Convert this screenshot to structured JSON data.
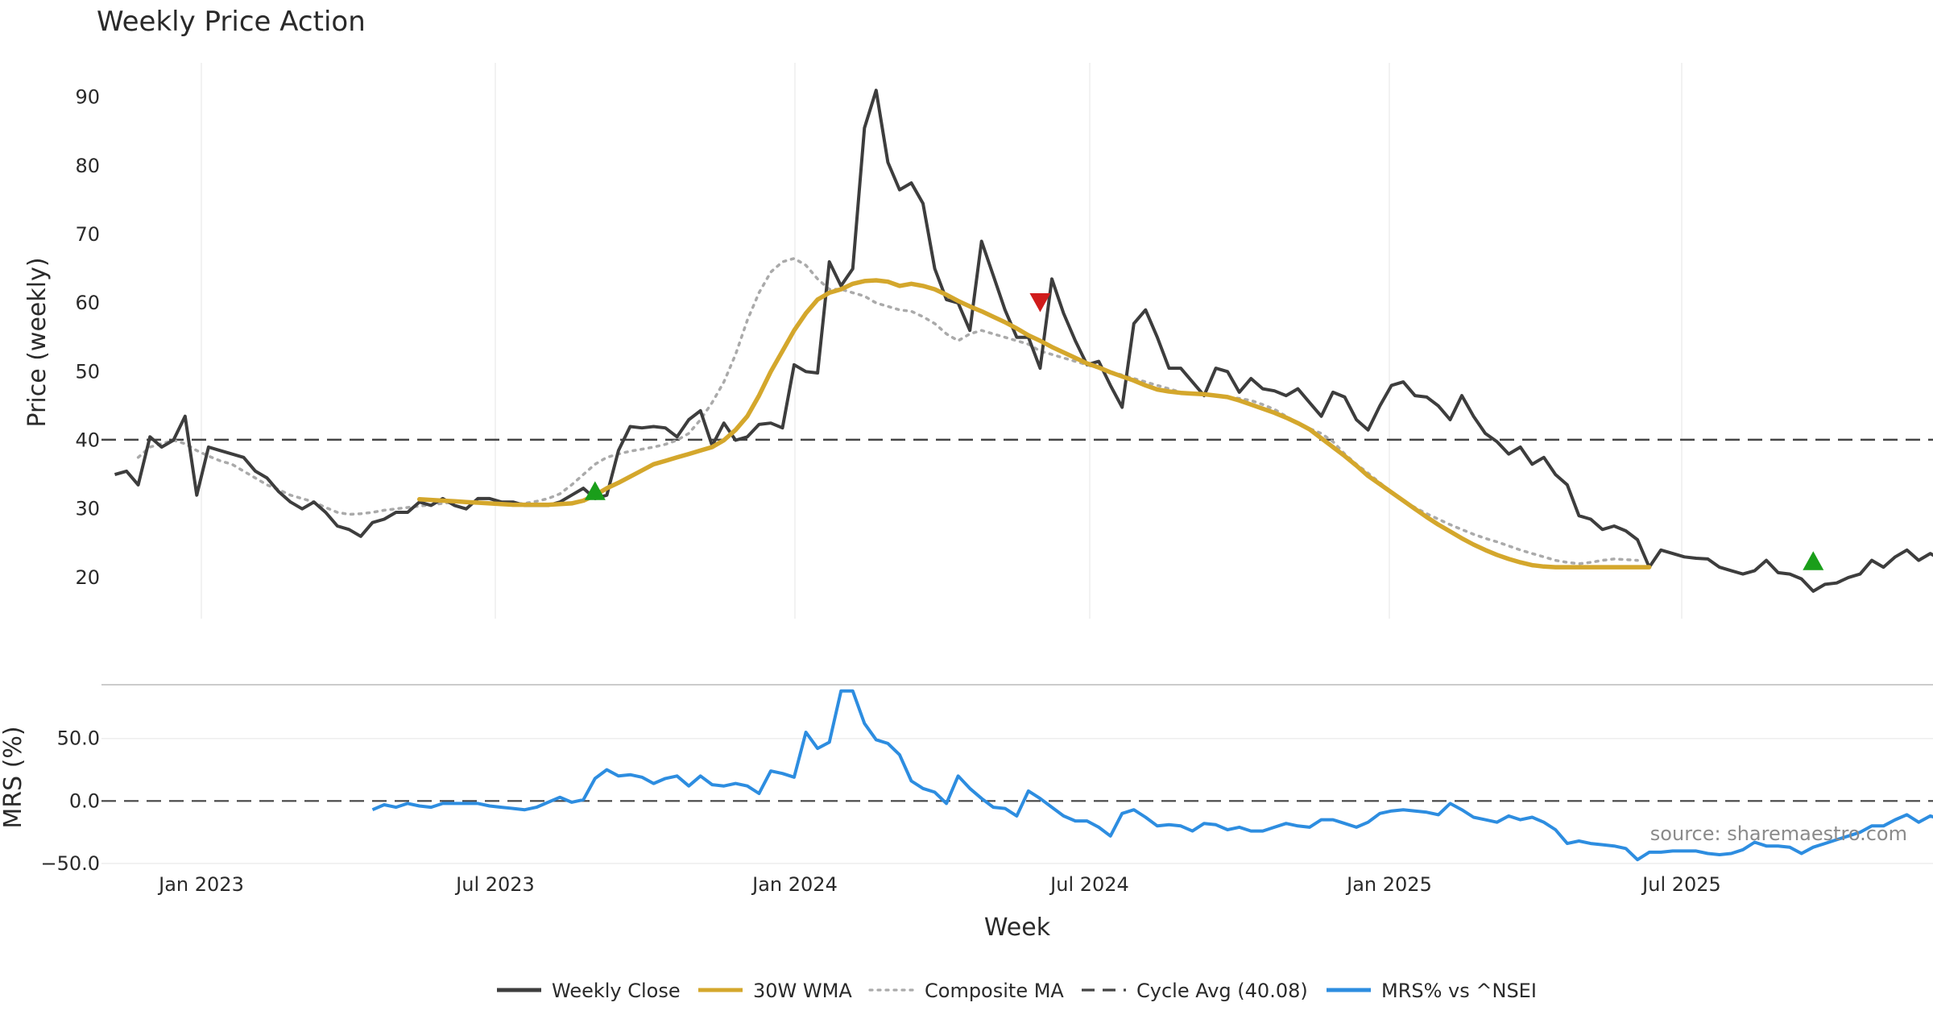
{
  "chart_data": {
    "type": "line",
    "title": "Weekly Price Action",
    "xlabel": "Week",
    "source": "source: sharemaestro.com",
    "x_ticks": [
      "Jan 2023",
      "Jul 2023",
      "Jan 2024",
      "Jul 2024",
      "Jan 2025",
      "Jul 2025"
    ],
    "colors": {
      "weekly_close": "#3d3d3d",
      "wma": "#d4a72c",
      "composite": "#aaaaaa",
      "cycle_avg": "#444444",
      "mrs": "#2d8de0",
      "buy": "#1a9e1a",
      "sell": "#d01c1c",
      "grid": "#eeeeee"
    },
    "legend": [
      {
        "label": "Weekly Close",
        "style": "solid",
        "color": "#3d3d3d"
      },
      {
        "label": "30W WMA",
        "style": "solid",
        "color": "#d4a72c"
      },
      {
        "label": "Composite MA",
        "style": "dotted",
        "color": "#aaaaaa"
      },
      {
        "label": "Cycle Avg (40.08)",
        "style": "dashed",
        "color": "#444444"
      },
      {
        "label": "MRS% vs ^NSEI",
        "style": "solid",
        "color": "#2d8de0"
      }
    ],
    "price_panel": {
      "ylabel": "Price (weekly)",
      "ylim": [
        14,
        95
      ],
      "yticks": [
        "20",
        "30",
        "40",
        "50",
        "60",
        "70",
        "80",
        "90"
      ],
      "ytick_values": [
        20,
        30,
        40,
        50,
        60,
        70,
        80,
        90
      ],
      "cycle_avg": 40.08,
      "week_range": [
        -1,
        150
      ],
      "weekly_close": [
        35,
        35.5,
        33.5,
        40.5,
        39,
        40,
        43.5,
        32,
        39,
        38.5,
        38,
        37.5,
        35.5,
        34.5,
        32.5,
        31,
        30,
        31,
        29.5,
        27.5,
        27,
        26,
        28,
        28.5,
        29.5,
        29.5,
        31,
        30.5,
        31.5,
        30.5,
        30,
        31.5,
        31.5,
        31,
        31,
        30.5,
        30.5,
        30.5,
        31,
        32,
        33,
        31.5,
        32,
        38.5,
        42,
        41.8,
        42,
        41.8,
        40.5,
        43,
        44.3,
        39.2,
        42.5,
        40,
        40.5,
        42.3,
        42.5,
        41.8,
        51,
        50,
        49.8,
        66,
        62.5,
        65,
        85.5,
        91,
        80.5,
        76.5,
        77.5,
        74.5,
        65,
        60.5,
        60,
        56,
        69,
        64,
        59,
        55,
        55,
        50.5,
        63.5,
        58.5,
        54.5,
        51,
        51.5,
        48,
        44.8,
        57,
        59,
        55,
        50.5,
        50.5,
        48.5,
        46.5,
        50.5,
        50,
        47,
        49,
        47.5,
        47.2,
        46.5,
        47.5,
        45.5,
        43.5,
        47,
        46.3,
        43,
        41.5,
        45,
        48,
        48.5,
        46.5,
        46.3,
        45,
        43,
        46.5,
        43.5,
        41,
        39.8,
        38,
        39,
        36.5,
        37.5,
        35,
        33.5,
        29,
        28.5,
        27,
        27.5,
        26.8,
        25.5,
        21.5,
        24,
        23.5,
        23,
        22.8,
        22.7,
        21.5,
        21,
        20.5,
        21,
        22.5,
        20.7,
        20.5,
        19.8,
        18,
        19,
        19.2,
        20,
        20.5,
        22.5,
        21.5,
        23,
        24,
        22.5,
        23.5,
        22.5
      ],
      "wma": [
        {
          "start_week": 26,
          "values": [
            31.4,
            31.3,
            31.2,
            31.1,
            31,
            30.9,
            30.8,
            30.7,
            30.6,
            30.6,
            30.6,
            30.6,
            30.7,
            30.8,
            31.2,
            32,
            33,
            33.8,
            34.7,
            35.6,
            36.5,
            37,
            37.5,
            38,
            38.5,
            39,
            40,
            41.5,
            43.5,
            46.5,
            50,
            53,
            56,
            58.5,
            60.5,
            61.5,
            62,
            62.8,
            63.2,
            63.3,
            63.1,
            62.5,
            62.8,
            62.5,
            62,
            61.2,
            60.3,
            59.5,
            58.8,
            58,
            57.2,
            56.3,
            55.3,
            54.5,
            53.6,
            52.8,
            52,
            51.2,
            50.6,
            49.9,
            49.3,
            48.7,
            48,
            47.4,
            47.1,
            46.9,
            46.8,
            46.7,
            46.5,
            46.3,
            45.8,
            45.2,
            44.6,
            44,
            43.3,
            42.5,
            41.6,
            40.3,
            39,
            37.7,
            36.3,
            34.8,
            33.6,
            32.4,
            31.2,
            30,
            28.8,
            27.7,
            26.7,
            25.7,
            24.8,
            24,
            23.3,
            22.7,
            22.2,
            21.8,
            21.6,
            21.5,
            21.5,
            21.5,
            21.5,
            21.5,
            21.5,
            21.5,
            21.5,
            21.5
          ]
        }
      ],
      "composite": [
        {
          "start_week": 2,
          "values": [
            37.5,
            39,
            39.5,
            40,
            39.5,
            38.5,
            37.7,
            37,
            36.5,
            35.5,
            34.5,
            33.5,
            32.8,
            32,
            31.5,
            31,
            30.2,
            29.5,
            29.2,
            29.3,
            29.5,
            29.8,
            30,
            30.2,
            30.4,
            30.6,
            30.8,
            31,
            31,
            31,
            30.8,
            30.7,
            30.7,
            30.8,
            31.1,
            31.5,
            32.2,
            33.5,
            35,
            36.5,
            37.5,
            38,
            38.4,
            38.7,
            39,
            39.4,
            40,
            41,
            43,
            45.5,
            48.5,
            52.5,
            57.5,
            61.5,
            64.5,
            66,
            66.5,
            65.5,
            63.5,
            62,
            62,
            61.5,
            61,
            60,
            59.5,
            59,
            58.8,
            58,
            57,
            55.5,
            54.5,
            55.5,
            56,
            55.5,
            55,
            54.5,
            54,
            53,
            52.5,
            52,
            51.5,
            51,
            50.5,
            50,
            49.5,
            49,
            48.5,
            48,
            47.5,
            47,
            46.8,
            46.7,
            46.5,
            46.3,
            46.1,
            45.8,
            45.2,
            44.5,
            43.5,
            42.5,
            41.7,
            41,
            39.8,
            38,
            36.5,
            35.2,
            33.8,
            32.5,
            31.2,
            30.2,
            29.3,
            28.5,
            27.7,
            27,
            26.3,
            25.7,
            25.2,
            24.6,
            24,
            23.5,
            23,
            22.5,
            22.2,
            22,
            22.2,
            22.5,
            22.7,
            22.6,
            22.5
          ]
        }
      ],
      "signals": [
        {
          "type": "buy",
          "week": 41,
          "value": 32.5
        },
        {
          "type": "sell",
          "week": 79,
          "value": 60.2
        },
        {
          "type": "buy",
          "week": 145,
          "value": 22.3
        }
      ]
    },
    "mrs_panel": {
      "ylabel": "MRS (%)",
      "ylim": [
        -52,
        93
      ],
      "yticks": [
        "50.0",
        "0.0",
        "−50.0"
      ],
      "ytick_values": [
        50,
        0,
        -50
      ],
      "zero_line": 0,
      "series_name": "MRS% vs ^NSEI",
      "values": [
        {
          "start_week": 22,
          "values": [
            -7,
            -3,
            -5,
            -2,
            -4,
            -5,
            -2,
            -2,
            -2,
            -2,
            -4,
            -5,
            -6,
            -7,
            -5,
            -1,
            3,
            -1,
            1,
            18,
            25,
            20,
            21,
            19,
            14,
            18,
            20,
            12,
            20,
            13,
            12,
            14,
            12,
            6,
            24,
            22,
            19,
            55,
            42,
            47,
            88,
            88,
            62,
            49,
            46,
            37,
            16,
            10,
            7,
            -2,
            20,
            10,
            2,
            -5,
            -6,
            -12,
            8,
            2,
            -5,
            -12,
            -16,
            -16,
            -21,
            -28,
            -10,
            -7,
            -13,
            -20,
            -19,
            -20,
            -24,
            -18,
            -19,
            -23,
            -21,
            -24,
            -24,
            -21,
            -18,
            -20,
            -21,
            -15,
            -15,
            -18,
            -21,
            -17,
            -10,
            -8,
            -7,
            -8,
            -9,
            -11,
            -2,
            -7,
            -13,
            -15,
            -17,
            -12,
            -15,
            -13,
            -17,
            -23,
            -34,
            -32,
            -34,
            -35,
            -36,
            -38,
            -47,
            -41,
            -41,
            -40,
            -40,
            -40,
            -42,
            -43,
            -42,
            -39,
            -33,
            -36,
            -36,
            -37,
            -42,
            -37,
            -34,
            -31,
            -28,
            -25,
            -20,
            -20,
            -15,
            -11,
            -17,
            -12,
            -15
          ]
        }
      ]
    }
  }
}
